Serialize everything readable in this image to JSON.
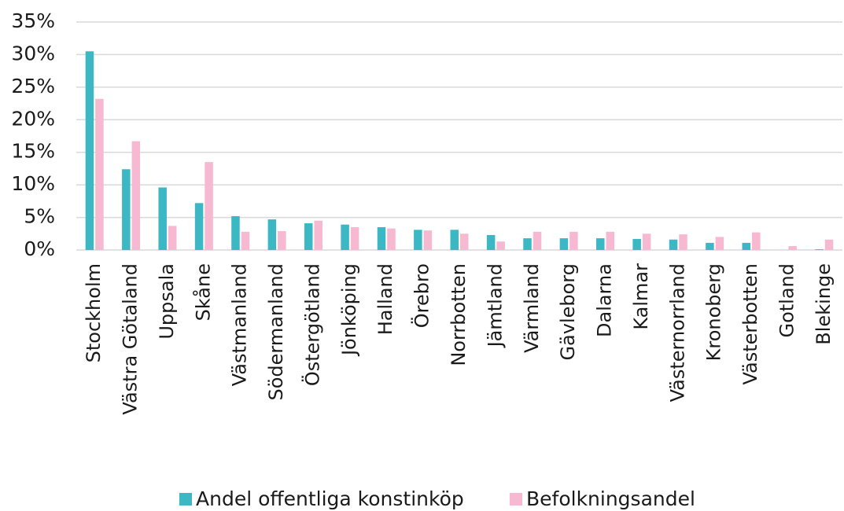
{
  "chart_data": {
    "type": "bar",
    "categories": [
      "Stockholm",
      "Västra Götaland",
      "Uppsala",
      "Skåne",
      "Västmanland",
      "Södermanland",
      "Östergötland",
      "Jönköping",
      "Halland",
      "Örebro",
      "Norrbotten",
      "Jämtland",
      "Värmland",
      "Gävleborg",
      "Dalarna",
      "Kalmar",
      "Västernorrland",
      "Kronoberg",
      "Västerbotten",
      "Gotland",
      "Blekinge"
    ],
    "series": [
      {
        "name": "Andel offentliga konstinköp",
        "color": "#3bb8c3",
        "values": [
          30.5,
          12.4,
          9.6,
          7.2,
          5.2,
          4.7,
          4.1,
          3.9,
          3.5,
          3.1,
          3.1,
          2.3,
          1.8,
          1.8,
          1.8,
          1.7,
          1.6,
          1.1,
          1.1,
          0,
          0.1
        ]
      },
      {
        "name": "Befolkningsandel",
        "color": "#f7b8d2",
        "values": [
          23.2,
          16.7,
          3.7,
          13.5,
          2.8,
          2.9,
          4.5,
          3.5,
          3.3,
          3.0,
          2.5,
          1.3,
          2.8,
          2.8,
          2.8,
          2.5,
          2.4,
          2.0,
          2.7,
          0.6,
          1.6
        ]
      }
    ],
    "ylim": [
      0,
      35
    ],
    "yticks": [
      {
        "value": 0,
        "label": "0%"
      },
      {
        "value": 5,
        "label": "5%"
      },
      {
        "value": 10,
        "label": "10%"
      },
      {
        "value": 15,
        "label": "15%"
      },
      {
        "value": 20,
        "label": "20%"
      },
      {
        "value": 25,
        "label": "25%"
      },
      {
        "value": 30,
        "label": "30%"
      },
      {
        "value": 35,
        "label": "35%"
      }
    ],
    "grid": true,
    "legend": "bottom"
  }
}
